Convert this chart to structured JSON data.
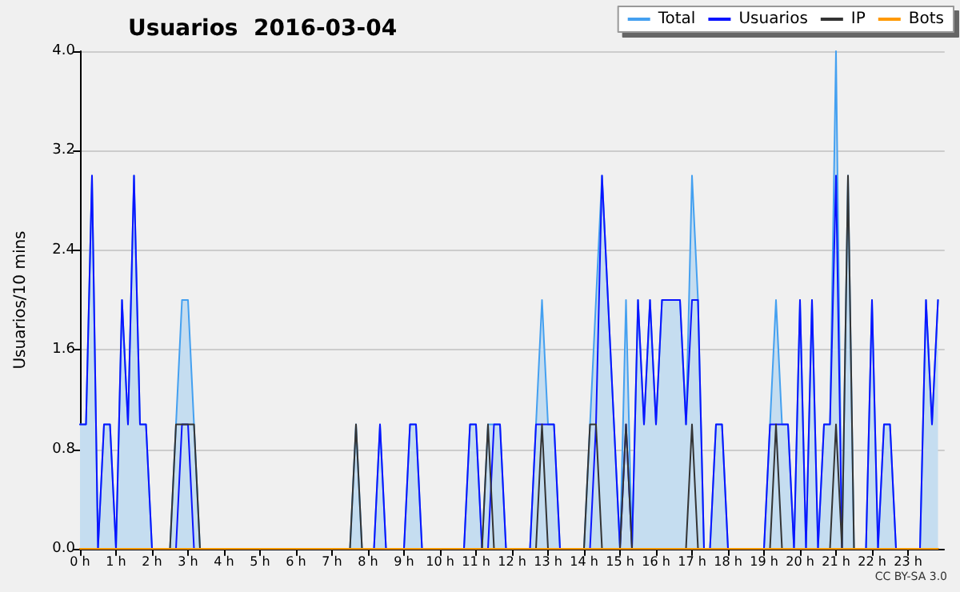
{
  "chart_data": {
    "type": "line",
    "title": "Usuarios  2016-03-04",
    "ylabel": "Usuarios/10 mins",
    "annotations": [
      "CC BY-SA 3.0"
    ],
    "xlim": [
      0,
      24
    ],
    "ylim": [
      0,
      4
    ],
    "xticks": [
      {
        "value": 0,
        "label": "0 h"
      },
      {
        "value": 1,
        "label": "1 h"
      },
      {
        "value": 2,
        "label": "2 h"
      },
      {
        "value": 3,
        "label": "3 h"
      },
      {
        "value": 4,
        "label": "4 h"
      },
      {
        "value": 5,
        "label": "5 h"
      },
      {
        "value": 6,
        "label": "6 h"
      },
      {
        "value": 7,
        "label": "7 h"
      },
      {
        "value": 8,
        "label": "8 h"
      },
      {
        "value": 9,
        "label": "9 h"
      },
      {
        "value": 10,
        "label": "10 h"
      },
      {
        "value": 11,
        "label": "11 h"
      },
      {
        "value": 12,
        "label": "12 h"
      },
      {
        "value": 13,
        "label": "13 h"
      },
      {
        "value": 14,
        "label": "14 h"
      },
      {
        "value": 15,
        "label": "15 h"
      },
      {
        "value": 16,
        "label": "16 h"
      },
      {
        "value": 17,
        "label": "17 h"
      },
      {
        "value": 18,
        "label": "18 h"
      },
      {
        "value": 19,
        "label": "19 h"
      },
      {
        "value": 20,
        "label": "20 h"
      },
      {
        "value": 21,
        "label": "21 h"
      },
      {
        "value": 22,
        "label": "22 h"
      },
      {
        "value": 23,
        "label": "23 h"
      }
    ],
    "yticks": [
      {
        "value": 0,
        "label": "0.0"
      },
      {
        "value": 0.8,
        "label": "0.8"
      },
      {
        "value": 1.6,
        "label": "1.6"
      },
      {
        "value": 2.4,
        "label": "2.4"
      },
      {
        "value": 3.2,
        "label": "3.2"
      },
      {
        "value": 4,
        "label": "4.0"
      }
    ],
    "grid": "y",
    "legend": "top right",
    "marker": "none",
    "line_style": "solid",
    "x": [
      0,
      0.1667,
      0.3333,
      0.5,
      0.6667,
      0.8333,
      1,
      1.1667,
      1.3333,
      1.5,
      1.6667,
      1.8333,
      2,
      2.1667,
      2.3333,
      2.5,
      2.6667,
      2.8333,
      3,
      3.1667,
      3.3333,
      3.5,
      3.6667,
      3.8333,
      4,
      4.1667,
      4.3333,
      4.5,
      4.6667,
      4.8333,
      5,
      5.1667,
      5.3333,
      5.5,
      5.6667,
      5.8333,
      6,
      6.1667,
      6.3333,
      6.5,
      6.6667,
      6.8333,
      7,
      7.1667,
      7.3333,
      7.5,
      7.6667,
      7.8333,
      8,
      8.1667,
      8.3333,
      8.5,
      8.6667,
      8.8333,
      9,
      9.1667,
      9.3333,
      9.5,
      9.6667,
      9.8333,
      10,
      10.1667,
      10.3333,
      10.5,
      10.6667,
      10.8333,
      11,
      11.1667,
      11.3333,
      11.5,
      11.6667,
      11.8333,
      12,
      12.1667,
      12.3333,
      12.5,
      12.6667,
      12.8333,
      13,
      13.1667,
      13.3333,
      13.5,
      13.6667,
      13.8333,
      14,
      14.1667,
      14.3333,
      14.5,
      14.6667,
      14.8333,
      15,
      15.1667,
      15.3333,
      15.5,
      15.6667,
      15.8333,
      16,
      16.1667,
      16.3333,
      16.5,
      16.6667,
      16.8333,
      17,
      17.1667,
      17.3333,
      17.5,
      17.6667,
      17.8333,
      18,
      18.1667,
      18.3333,
      18.5,
      18.6667,
      18.8333,
      19,
      19.1667,
      19.3333,
      19.5,
      19.6667,
      19.8333,
      20,
      20.1667,
      20.3333,
      20.5,
      20.6667,
      20.8333,
      21,
      21.1667,
      21.3333,
      21.5,
      21.6667,
      21.8333,
      22,
      22.1667,
      22.3333,
      22.5,
      22.6667,
      22.8333,
      23,
      23.1667,
      23.3333,
      23.5,
      23.6667,
      23.8333
    ],
    "series": [
      {
        "name": "Total",
        "type": "area",
        "color": "#44a0f0",
        "values": [
          1,
          1,
          3,
          0,
          1,
          1,
          0,
          2,
          1,
          3,
          1,
          1,
          0,
          0,
          0,
          0,
          1,
          2,
          2,
          1,
          0,
          0,
          0,
          0,
          0,
          0,
          0,
          0,
          0,
          0,
          0,
          0,
          0,
          0,
          0,
          0,
          0,
          0,
          0,
          0,
          0,
          0,
          0,
          0,
          0,
          0,
          1,
          0,
          0,
          0,
          1,
          0,
          0,
          0,
          0,
          1,
          1,
          0,
          0,
          0,
          0,
          0,
          0,
          0,
          0,
          1,
          1,
          0,
          1,
          1,
          1,
          0,
          0,
          0,
          0,
          0,
          1,
          2,
          1,
          1,
          0,
          0,
          0,
          0,
          0,
          1,
          2,
          3,
          2,
          1,
          0,
          2,
          0,
          2,
          1,
          2,
          1,
          2,
          2,
          2,
          2,
          1,
          3,
          2,
          0,
          0,
          1,
          1,
          0,
          0,
          0,
          0,
          0,
          0,
          0,
          1,
          2,
          1,
          1,
          0,
          2,
          0,
          2,
          0,
          1,
          1,
          4,
          0,
          3,
          0,
          0,
          0,
          2,
          0,
          1,
          1,
          0,
          0,
          0,
          0,
          0,
          2,
          1,
          2
        ]
      },
      {
        "name": "Usuarios",
        "color": "#0a14ff",
        "values": [
          1,
          1,
          3,
          0,
          1,
          1,
          0,
          2,
          1,
          3,
          1,
          1,
          0,
          0,
          0,
          0,
          0,
          1,
          1,
          0,
          0,
          0,
          0,
          0,
          0,
          0,
          0,
          0,
          0,
          0,
          0,
          0,
          0,
          0,
          0,
          0,
          0,
          0,
          0,
          0,
          0,
          0,
          0,
          0,
          0,
          0,
          0,
          0,
          0,
          0,
          1,
          0,
          0,
          0,
          0,
          1,
          1,
          0,
          0,
          0,
          0,
          0,
          0,
          0,
          0,
          1,
          1,
          0,
          0,
          1,
          1,
          0,
          0,
          0,
          0,
          0,
          1,
          1,
          1,
          1,
          0,
          0,
          0,
          0,
          0,
          0,
          1,
          3,
          2,
          1,
          0,
          1,
          0,
          2,
          1,
          2,
          1,
          2,
          2,
          2,
          2,
          1,
          2,
          2,
          0,
          0,
          1,
          1,
          0,
          0,
          0,
          0,
          0,
          0,
          0,
          1,
          1,
          1,
          1,
          0,
          2,
          0,
          2,
          0,
          1,
          1,
          3,
          0,
          0,
          0,
          0,
          0,
          2,
          0,
          1,
          1,
          0,
          0,
          0,
          0,
          0,
          2,
          1,
          2
        ]
      },
      {
        "name": "IP",
        "color": "#333333",
        "values": [
          0,
          0,
          0,
          0,
          0,
          0,
          0,
          0,
          0,
          0,
          0,
          0,
          0,
          0,
          0,
          0,
          1,
          1,
          1,
          1,
          0,
          0,
          0,
          0,
          0,
          0,
          0,
          0,
          0,
          0,
          0,
          0,
          0,
          0,
          0,
          0,
          0,
          0,
          0,
          0,
          0,
          0,
          0,
          0,
          0,
          0,
          1,
          0,
          0,
          0,
          0,
          0,
          0,
          0,
          0,
          0,
          0,
          0,
          0,
          0,
          0,
          0,
          0,
          0,
          0,
          0,
          0,
          0,
          1,
          0,
          0,
          0,
          0,
          0,
          0,
          0,
          0,
          1,
          0,
          0,
          0,
          0,
          0,
          0,
          0,
          1,
          1,
          0,
          0,
          0,
          0,
          1,
          0,
          0,
          0,
          0,
          0,
          0,
          0,
          0,
          0,
          0,
          1,
          0,
          0,
          0,
          0,
          0,
          0,
          0,
          0,
          0,
          0,
          0,
          0,
          0,
          1,
          0,
          0,
          0,
          0,
          0,
          0,
          0,
          0,
          0,
          1,
          0,
          3,
          0,
          0,
          0,
          0,
          0,
          0,
          0,
          0,
          0,
          0,
          0,
          0,
          0,
          0,
          0
        ]
      },
      {
        "name": "Bots",
        "color": "#ff9900",
        "values": [
          0,
          0,
          0,
          0,
          0,
          0,
          0,
          0,
          0,
          0,
          0,
          0,
          0,
          0,
          0,
          0,
          0,
          0,
          0,
          0,
          0,
          0,
          0,
          0,
          0,
          0,
          0,
          0,
          0,
          0,
          0,
          0,
          0,
          0,
          0,
          0,
          0,
          0,
          0,
          0,
          0,
          0,
          0,
          0,
          0,
          0,
          0,
          0,
          0,
          0,
          0,
          0,
          0,
          0,
          0,
          0,
          0,
          0,
          0,
          0,
          0,
          0,
          0,
          0,
          0,
          0,
          0,
          0,
          0,
          0,
          0,
          0,
          0,
          0,
          0,
          0,
          0,
          0,
          0,
          0,
          0,
          0,
          0,
          0,
          0,
          0,
          0,
          0,
          0,
          0,
          0,
          0,
          0,
          0,
          0,
          0,
          0,
          0,
          0,
          0,
          0,
          0,
          0,
          0,
          0,
          0,
          0,
          0,
          0,
          0,
          0,
          0,
          0,
          0,
          0,
          0,
          0,
          0,
          0,
          0,
          0,
          0,
          0,
          0,
          0,
          0,
          0,
          0,
          0,
          0,
          0,
          0,
          0,
          0,
          0,
          0,
          0,
          0,
          0,
          0,
          0,
          0,
          0,
          0
        ]
      }
    ]
  }
}
